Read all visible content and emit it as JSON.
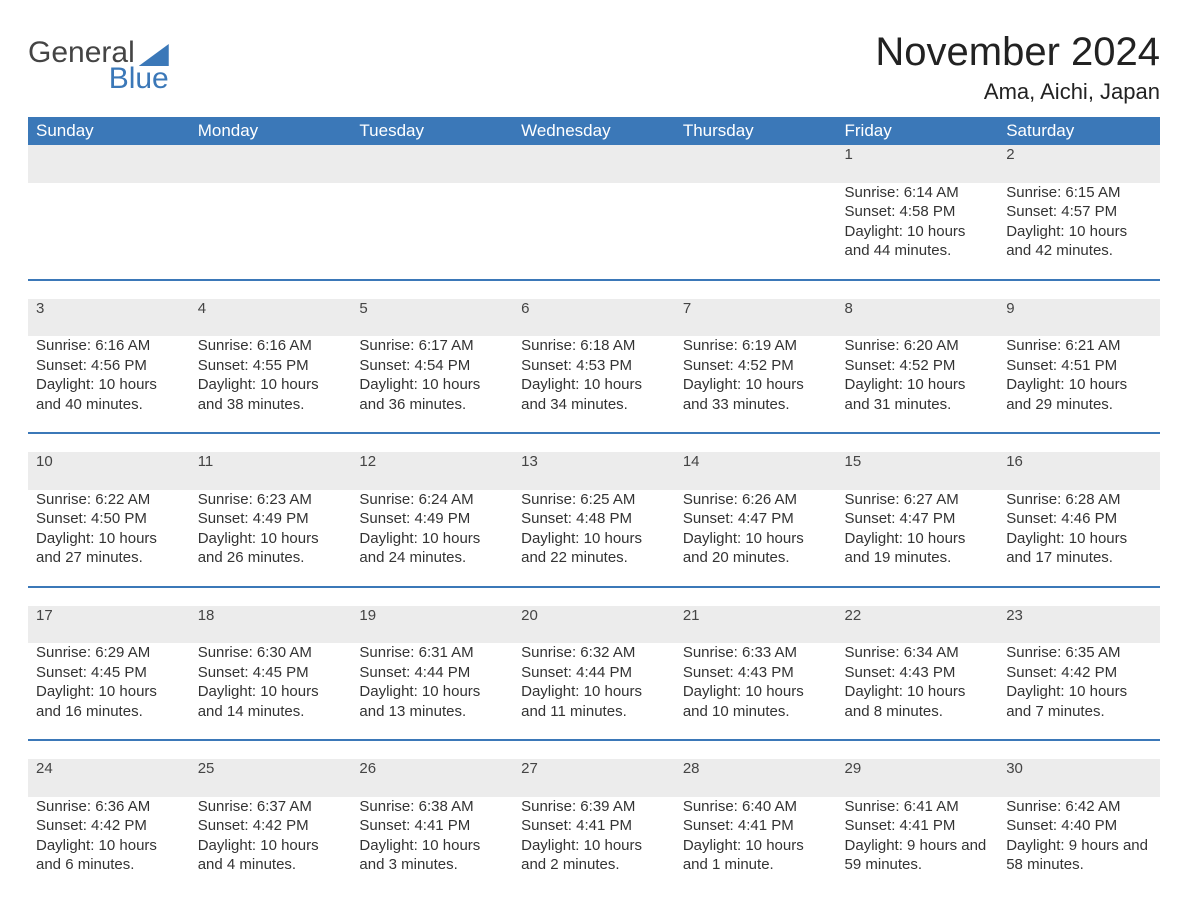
{
  "brand": {
    "part1": "General",
    "part2": "Blue"
  },
  "title": "November 2024",
  "location": "Ama, Aichi, Japan",
  "colors": {
    "header_blue": "#3b78b8",
    "light_grey": "#ececec",
    "text_dark": "#333333",
    "white": "#ffffff"
  },
  "dayNames": [
    "Sunday",
    "Monday",
    "Tuesday",
    "Wednesday",
    "Thursday",
    "Friday",
    "Saturday"
  ],
  "labels": {
    "sunrise": "Sunrise:",
    "sunset": "Sunset:",
    "daylight": "Daylight:"
  },
  "weeks": [
    [
      null,
      null,
      null,
      null,
      null,
      {
        "n": "1",
        "sr": "6:14 AM",
        "ss": "4:58 PM",
        "dl": "10 hours and 44 minutes."
      },
      {
        "n": "2",
        "sr": "6:15 AM",
        "ss": "4:57 PM",
        "dl": "10 hours and 42 minutes."
      }
    ],
    [
      {
        "n": "3",
        "sr": "6:16 AM",
        "ss": "4:56 PM",
        "dl": "10 hours and 40 minutes."
      },
      {
        "n": "4",
        "sr": "6:16 AM",
        "ss": "4:55 PM",
        "dl": "10 hours and 38 minutes."
      },
      {
        "n": "5",
        "sr": "6:17 AM",
        "ss": "4:54 PM",
        "dl": "10 hours and 36 minutes."
      },
      {
        "n": "6",
        "sr": "6:18 AM",
        "ss": "4:53 PM",
        "dl": "10 hours and 34 minutes."
      },
      {
        "n": "7",
        "sr": "6:19 AM",
        "ss": "4:52 PM",
        "dl": "10 hours and 33 minutes."
      },
      {
        "n": "8",
        "sr": "6:20 AM",
        "ss": "4:52 PM",
        "dl": "10 hours and 31 minutes."
      },
      {
        "n": "9",
        "sr": "6:21 AM",
        "ss": "4:51 PM",
        "dl": "10 hours and 29 minutes."
      }
    ],
    [
      {
        "n": "10",
        "sr": "6:22 AM",
        "ss": "4:50 PM",
        "dl": "10 hours and 27 minutes."
      },
      {
        "n": "11",
        "sr": "6:23 AM",
        "ss": "4:49 PM",
        "dl": "10 hours and 26 minutes."
      },
      {
        "n": "12",
        "sr": "6:24 AM",
        "ss": "4:49 PM",
        "dl": "10 hours and 24 minutes."
      },
      {
        "n": "13",
        "sr": "6:25 AM",
        "ss": "4:48 PM",
        "dl": "10 hours and 22 minutes."
      },
      {
        "n": "14",
        "sr": "6:26 AM",
        "ss": "4:47 PM",
        "dl": "10 hours and 20 minutes."
      },
      {
        "n": "15",
        "sr": "6:27 AM",
        "ss": "4:47 PM",
        "dl": "10 hours and 19 minutes."
      },
      {
        "n": "16",
        "sr": "6:28 AM",
        "ss": "4:46 PM",
        "dl": "10 hours and 17 minutes."
      }
    ],
    [
      {
        "n": "17",
        "sr": "6:29 AM",
        "ss": "4:45 PM",
        "dl": "10 hours and 16 minutes."
      },
      {
        "n": "18",
        "sr": "6:30 AM",
        "ss": "4:45 PM",
        "dl": "10 hours and 14 minutes."
      },
      {
        "n": "19",
        "sr": "6:31 AM",
        "ss": "4:44 PM",
        "dl": "10 hours and 13 minutes."
      },
      {
        "n": "20",
        "sr": "6:32 AM",
        "ss": "4:44 PM",
        "dl": "10 hours and 11 minutes."
      },
      {
        "n": "21",
        "sr": "6:33 AM",
        "ss": "4:43 PM",
        "dl": "10 hours and 10 minutes."
      },
      {
        "n": "22",
        "sr": "6:34 AM",
        "ss": "4:43 PM",
        "dl": "10 hours and 8 minutes."
      },
      {
        "n": "23",
        "sr": "6:35 AM",
        "ss": "4:42 PM",
        "dl": "10 hours and 7 minutes."
      }
    ],
    [
      {
        "n": "24",
        "sr": "6:36 AM",
        "ss": "4:42 PM",
        "dl": "10 hours and 6 minutes."
      },
      {
        "n": "25",
        "sr": "6:37 AM",
        "ss": "4:42 PM",
        "dl": "10 hours and 4 minutes."
      },
      {
        "n": "26",
        "sr": "6:38 AM",
        "ss": "4:41 PM",
        "dl": "10 hours and 3 minutes."
      },
      {
        "n": "27",
        "sr": "6:39 AM",
        "ss": "4:41 PM",
        "dl": "10 hours and 2 minutes."
      },
      {
        "n": "28",
        "sr": "6:40 AM",
        "ss": "4:41 PM",
        "dl": "10 hours and 1 minute."
      },
      {
        "n": "29",
        "sr": "6:41 AM",
        "ss": "4:41 PM",
        "dl": "9 hours and 59 minutes."
      },
      {
        "n": "30",
        "sr": "6:42 AM",
        "ss": "4:40 PM",
        "dl": "9 hours and 58 minutes."
      }
    ]
  ]
}
